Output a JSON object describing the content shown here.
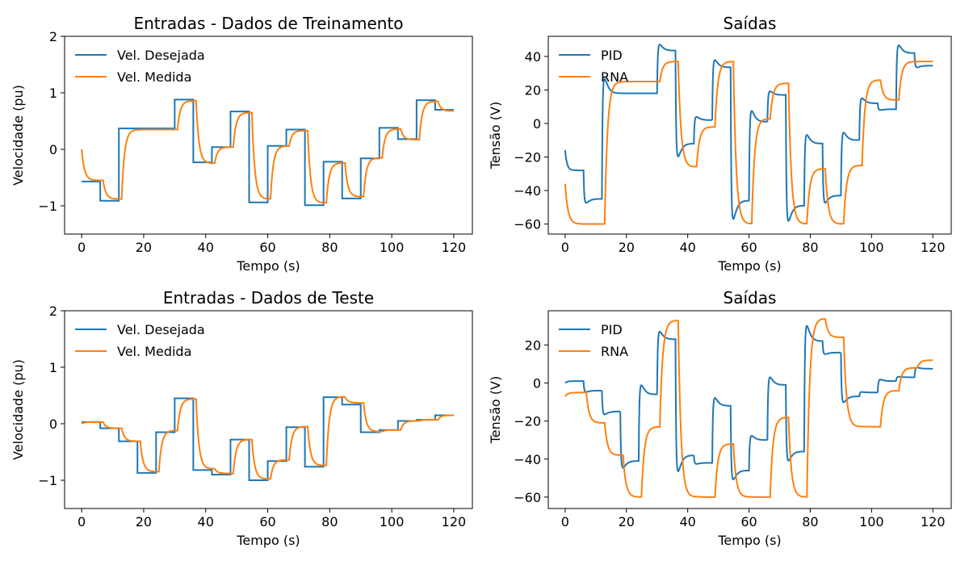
{
  "colors": {
    "blue": "#1f77b4",
    "orange": "#ff7f0e"
  },
  "chart_data": [
    {
      "type": "line",
      "title": "Entradas - Dados de Treinamento",
      "xlabel": "Tempo (s)",
      "ylabel": "Velocidade (pu)",
      "xlim": [
        -5.5,
        126
      ],
      "ylim": [
        -1.5,
        2
      ],
      "xticks": [
        0,
        20,
        40,
        60,
        80,
        100,
        120
      ],
      "yticks": [
        -1,
        0,
        1,
        2
      ],
      "grid": false,
      "legend_position": "top-left",
      "series": [
        {
          "name": "Vel. Desejada",
          "color": "#1f77b4",
          "style": "step",
          "x": [
            0,
            6,
            12,
            24,
            30,
            36,
            42,
            48,
            54,
            60,
            66,
            72,
            78,
            84,
            90,
            96,
            102,
            108,
            114,
            120
          ],
          "y": [
            -0.57,
            -0.91,
            0.37,
            0.37,
            0.88,
            -0.23,
            0.04,
            0.67,
            -0.94,
            0.06,
            0.35,
            -0.99,
            -0.22,
            -0.87,
            -0.16,
            0.38,
            0.18,
            0.87,
            0.7,
            0.7
          ]
        },
        {
          "name": "Vel. Medida",
          "color": "#ff7f0e",
          "style": "lagged",
          "x": [
            0,
            6,
            12,
            24,
            30,
            36,
            42,
            48,
            54,
            60,
            66,
            72,
            78,
            84,
            90,
            96,
            102,
            108,
            114,
            120
          ],
          "y": [
            -0.55,
            -0.88,
            0.35,
            0.35,
            0.86,
            -0.25,
            0.04,
            0.65,
            -0.88,
            0.06,
            0.33,
            -0.95,
            -0.24,
            -0.84,
            -0.15,
            0.36,
            0.17,
            0.85,
            0.68,
            0.68
          ],
          "start": 0.0
        }
      ]
    },
    {
      "type": "line",
      "title": "Saídas",
      "xlabel": "Tempo (s)",
      "ylabel": "Tensão (V)",
      "xlim": [
        -5.5,
        126
      ],
      "ylim": [
        -66,
        52
      ],
      "xticks": [
        0,
        20,
        40,
        60,
        80,
        100,
        120
      ],
      "yticks": [
        -60,
        -40,
        -20,
        0,
        20,
        40
      ],
      "grid": false,
      "legend_position": "top-left",
      "series": [
        {
          "name": "PID",
          "color": "#1f77b4",
          "style": "transient",
          "x": [
            0,
            6,
            12,
            24,
            30,
            36,
            42,
            48,
            54,
            60,
            66,
            72,
            78,
            84,
            90,
            96,
            102,
            108,
            114,
            120
          ],
          "y": [
            -28,
            -45,
            18,
            18,
            43.5,
            -12,
            2,
            33.5,
            -46,
            1,
            17,
            -49,
            -12,
            -43,
            -10,
            12,
            8.5,
            42,
            34.5,
            34.5
          ],
          "pre": -16
        },
        {
          "name": "RNA",
          "color": "#ff7f0e",
          "style": "lagged",
          "x": [
            0,
            6,
            12,
            24,
            30,
            36,
            42,
            48,
            54,
            60,
            66,
            72,
            78,
            84,
            90,
            96,
            102,
            108,
            114,
            120
          ],
          "y": [
            -60,
            -60,
            25,
            25,
            37,
            -26,
            -2,
            37,
            -60,
            3,
            24,
            -60,
            -27,
            -60,
            -25,
            26,
            14,
            37,
            37,
            37
          ],
          "start": -36
        }
      ]
    },
    {
      "type": "line",
      "title": "Entradas - Dados de Teste",
      "xlabel": "Tempo (s)",
      "ylabel": "Velocidade (pu)",
      "xlim": [
        -5.5,
        126
      ],
      "ylim": [
        -1.5,
        2
      ],
      "xticks": [
        0,
        20,
        40,
        60,
        80,
        100,
        120
      ],
      "yticks": [
        -1,
        0,
        1,
        2
      ],
      "grid": false,
      "legend_position": "top-left",
      "series": [
        {
          "name": "Vel. Desejada",
          "color": "#1f77b4",
          "style": "step",
          "x": [
            0,
            6,
            12,
            18,
            24,
            30,
            36,
            42,
            48,
            54,
            60,
            66,
            72,
            78,
            84,
            90,
            96,
            102,
            108,
            114,
            120
          ],
          "y": [
            0.03,
            -0.08,
            -0.31,
            -0.87,
            -0.15,
            0.45,
            -0.82,
            -0.9,
            -0.28,
            -1.0,
            -0.66,
            -0.06,
            -0.76,
            0.47,
            0.34,
            -0.15,
            -0.11,
            0.05,
            0.07,
            0.15,
            0.15
          ]
        },
        {
          "name": "Vel. Medida",
          "color": "#ff7f0e",
          "style": "lagged",
          "x": [
            0,
            6,
            12,
            18,
            24,
            30,
            36,
            42,
            48,
            54,
            60,
            66,
            72,
            78,
            84,
            90,
            96,
            102,
            108,
            114,
            120
          ],
          "y": [
            0.03,
            -0.08,
            -0.31,
            -0.85,
            -0.12,
            0.44,
            -0.8,
            -0.88,
            -0.28,
            -0.98,
            -0.64,
            -0.05,
            -0.74,
            0.48,
            0.37,
            -0.14,
            -0.11,
            0.05,
            0.07,
            0.15,
            0.15
          ],
          "start": 0.0
        }
      ]
    },
    {
      "type": "line",
      "title": "Saídas",
      "xlabel": "Tempo (s)",
      "ylabel": "Tensão (V)",
      "xlim": [
        -5.5,
        126
      ],
      "ylim": [
        -66,
        38
      ],
      "xticks": [
        0,
        20,
        40,
        60,
        80,
        100,
        120
      ],
      "yticks": [
        -60,
        -40,
        -20,
        0,
        20
      ],
      "grid": false,
      "legend_position": "top-left",
      "series": [
        {
          "name": "PID",
          "color": "#1f77b4",
          "style": "transient",
          "x": [
            0,
            6,
            12,
            18,
            24,
            30,
            36,
            42,
            48,
            54,
            60,
            66,
            72,
            78,
            84,
            90,
            96,
            102,
            108,
            114,
            120
          ],
          "y": [
            1,
            -4,
            -15,
            -41,
            -6,
            23,
            -38,
            -42,
            -12,
            -46,
            -30,
            -1,
            -36,
            22,
            16,
            -7,
            -5,
            1,
            3,
            7.5,
            7.5
          ],
          "pre": 0
        },
        {
          "name": "RNA",
          "color": "#ff7f0e",
          "style": "lagged",
          "x": [
            0,
            6,
            12,
            18,
            24,
            30,
            36,
            42,
            48,
            54,
            60,
            66,
            72,
            78,
            84,
            90,
            96,
            102,
            108,
            114,
            120
          ],
          "y": [
            -5,
            -21,
            -38,
            -60,
            -23,
            33,
            -60,
            -60,
            -32,
            -60,
            -60,
            -18,
            -60,
            34,
            24,
            -23,
            -23,
            -4,
            8,
            12,
            12
          ],
          "start": -7
        }
      ]
    }
  ]
}
